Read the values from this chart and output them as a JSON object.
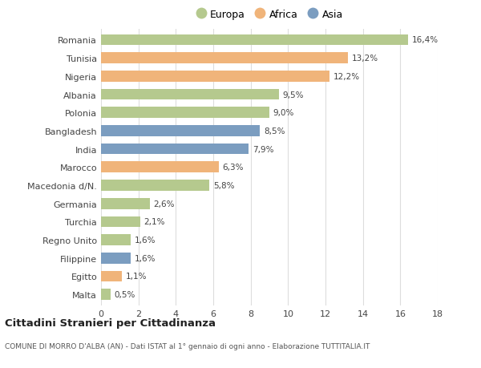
{
  "categories": [
    "Romania",
    "Tunisia",
    "Nigeria",
    "Albania",
    "Polonia",
    "Bangladesh",
    "India",
    "Marocco",
    "Macedonia d/N.",
    "Germania",
    "Turchia",
    "Regno Unito",
    "Filippine",
    "Egitto",
    "Malta"
  ],
  "values": [
    16.4,
    13.2,
    12.2,
    9.5,
    9.0,
    8.5,
    7.9,
    6.3,
    5.8,
    2.6,
    2.1,
    1.6,
    1.6,
    1.1,
    0.5
  ],
  "labels": [
    "16,4%",
    "13,2%",
    "12,2%",
    "9,5%",
    "9,0%",
    "8,5%",
    "7,9%",
    "6,3%",
    "5,8%",
    "2,6%",
    "2,1%",
    "1,6%",
    "1,6%",
    "1,1%",
    "0,5%"
  ],
  "regions": [
    "Europa",
    "Africa",
    "Africa",
    "Europa",
    "Europa",
    "Asia",
    "Asia",
    "Africa",
    "Europa",
    "Europa",
    "Europa",
    "Europa",
    "Asia",
    "Africa",
    "Europa"
  ],
  "colors": {
    "Europa": "#b5c98e",
    "Africa": "#f0b47a",
    "Asia": "#7b9dc0"
  },
  "xlim": [
    0,
    18
  ],
  "xticks": [
    0,
    2,
    4,
    6,
    8,
    10,
    12,
    14,
    16,
    18
  ],
  "title": "Cittadini Stranieri per Cittadinanza",
  "subtitle": "COMUNE DI MORRO D'ALBA (AN) - Dati ISTAT al 1° gennaio di ogni anno - Elaborazione TUTTITALIA.IT",
  "background_color": "#ffffff",
  "grid_color": "#dddddd",
  "bar_height": 0.6
}
